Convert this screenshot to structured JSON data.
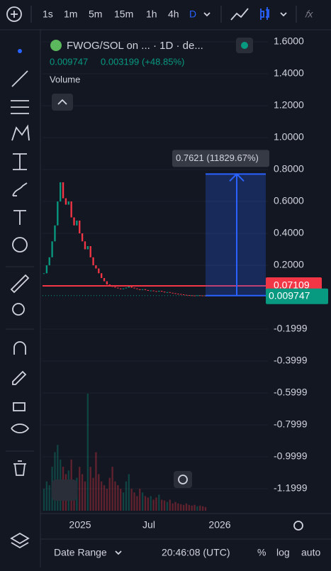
{
  "toolbar": {
    "intervals": [
      "1s",
      "1m",
      "5m",
      "15m",
      "1h",
      "4h",
      "D"
    ]
  },
  "chart": {
    "type": "candlestick",
    "legend": {
      "symbol": "FWOG/SOL on ... · 1D · de...",
      "last": "0.009747",
      "change": "0.003199",
      "change_pct": "(+48.85%)",
      "volume": "Volume"
    },
    "closes": [
      0.15,
      0.2,
      0.25,
      0.35,
      0.45,
      0.6,
      0.72,
      0.62,
      0.58,
      0.6,
      0.5,
      0.45,
      0.48,
      0.4,
      0.35,
      0.3,
      0.32,
      0.25,
      0.2,
      0.18,
      0.15,
      0.12,
      0.1,
      0.08,
      0.07,
      0.065,
      0.06,
      0.055,
      0.05,
      0.055,
      0.06,
      0.07,
      0.06,
      0.055,
      0.05,
      0.045,
      0.05,
      0.045,
      0.04,
      0.042,
      0.038,
      0.035,
      0.04,
      0.035,
      0.03,
      0.032,
      0.028,
      0.025,
      0.022,
      0.02,
      0.018,
      0.015,
      0.013,
      0.012,
      0.011,
      0.01,
      0.012,
      0.011,
      0.0105,
      0.009747
    ],
    "volume": [
      30,
      40,
      35,
      60,
      80,
      90,
      70,
      60,
      50,
      55,
      70,
      40,
      45,
      60,
      50,
      40,
      160,
      60,
      45,
      80,
      50,
      40,
      35,
      30,
      45,
      60,
      40,
      35,
      30,
      25,
      40,
      50,
      30,
      25,
      20,
      30,
      25,
      20,
      18,
      20,
      15,
      18,
      22,
      15,
      14,
      12,
      15,
      10,
      12,
      10,
      9,
      8,
      10,
      8,
      7,
      8,
      6,
      7,
      6,
      5
    ],
    "ylim": [
      -1.3,
      1.7
    ],
    "yticks": [
      {
        "value": 1.6,
        "label": "1.6000"
      },
      {
        "value": 1.4,
        "label": "1.4000"
      },
      {
        "value": 1.2,
        "label": "1.2000"
      },
      {
        "value": 1.0,
        "label": "1.0000"
      },
      {
        "value": 0.8,
        "label": "0.8000"
      },
      {
        "value": 0.6,
        "label": "0.6000"
      },
      {
        "value": 0.4,
        "label": "0.4000"
      },
      {
        "value": 0.2,
        "label": "0.2000"
      },
      -0.1999,
      -0.3999,
      -0.5999,
      -0.7999,
      -0.9999,
      -1.1999
    ],
    "xlabels": [
      "2025",
      "Jul",
      "2026"
    ],
    "hline": {
      "value": 0.07109,
      "label": "0.07109",
      "color": "#f23645"
    },
    "measure": {
      "value": 0.7621,
      "label": "0.7621 (11829.67%)",
      "color": "#2962ff"
    },
    "up_color": "#089981",
    "down_color": "#f23645"
  },
  "bottom": {
    "date_range": "Date Range",
    "time": "20:46:08 (UTC)",
    "percent": "%",
    "log": "log",
    "auto": "auto"
  }
}
